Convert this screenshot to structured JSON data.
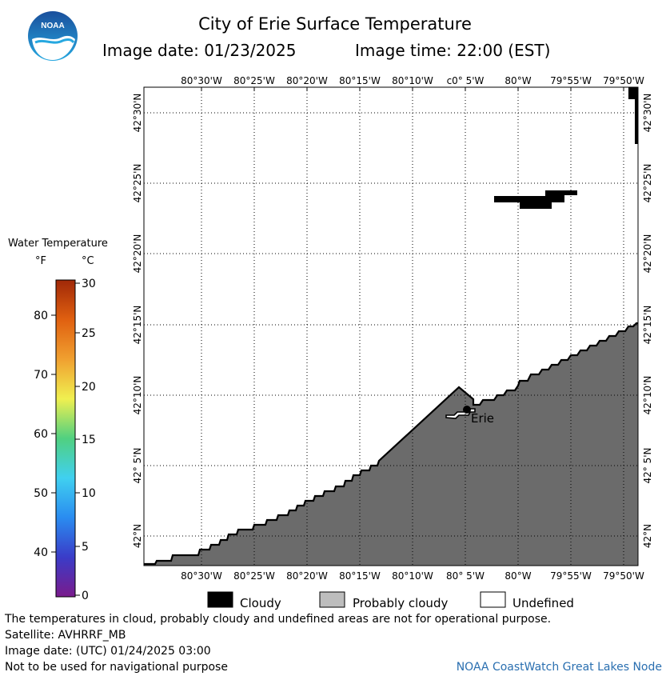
{
  "title": "City of Erie Surface Temperature",
  "image_date": "Image date: 01/23/2025",
  "image_time": "Image time: 22:00 (EST)",
  "logo_text": "NOAA",
  "legend": {
    "title": "Water Temperature",
    "unit_f": "°F",
    "unit_c": "°C",
    "f_ticks": [
      "80",
      "70",
      "60",
      "50",
      "40"
    ],
    "c_ticks": [
      "30",
      "25",
      "20",
      "15",
      "10",
      "5",
      "0"
    ],
    "color_stops": [
      "#7a1b8c",
      "#3a3cc8",
      "#2a8cf0",
      "#40d0f0",
      "#50d080",
      "#f0f050",
      "#f0a030",
      "#e06010",
      "#a02808"
    ]
  },
  "map": {
    "top_lon_labels": [
      "80°30'W",
      "80°25'W",
      "80°20'W",
      "80°15'W",
      "80°10'W",
      "c0° 5'W",
      "80°W",
      "79°55'W",
      "79°50'W"
    ],
    "bottom_lon_labels": [
      "80°30'W",
      "80°25'W",
      "80°20'W",
      "80°15'W",
      "80°10'W",
      "80° 5'W",
      "80°W",
      "79°55'W",
      "79°50'W"
    ],
    "lat_labels": [
      "42°30'N",
      "42°25'N",
      "42°20'N",
      "42°15'N",
      "42°10'N",
      "42° 5'N",
      "42°N"
    ],
    "city_label": "Erie",
    "colors": {
      "land": "#6b6b6b",
      "cloudy": "#000000",
      "frame": "#000000",
      "grid": "#000000"
    }
  },
  "key": {
    "cloudy": "Cloudy",
    "probably_cloudy": "Probably cloudy",
    "undefined": "Undefined",
    "colors": {
      "cloudy": "#000000",
      "probably_cloudy": "#bdbdbd",
      "undefined": "#ffffff"
    }
  },
  "footer": {
    "disclaimer": "The temperatures in cloud, probably cloudy and undefined areas are not for operational purpose.",
    "satellite": "Satellite: AVHRRF_MB",
    "utc_date": "Image date: (UTC) 01/24/2025  03:00",
    "nav_warning": "Not to be used for navigational purpose",
    "credit": "NOAA CoastWatch Great Lakes Node"
  }
}
